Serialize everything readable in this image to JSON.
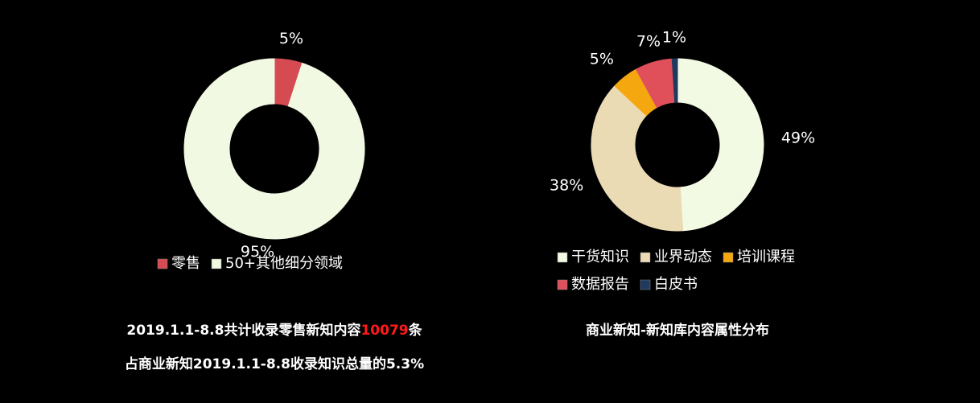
{
  "chart_data": [
    {
      "type": "donut",
      "categories": [
        "零售",
        "50+其他细分领域"
      ],
      "values": [
        5,
        95
      ],
      "value_labels": [
        "5%",
        "95%"
      ],
      "colors": [
        "#d64a52",
        "#f1f9e3"
      ],
      "legend": "bottom",
      "caption_lines": [
        [
          {
            "text": "2019.1.1-8.8共计收录零售新知内容",
            "color": "#ffffff"
          },
          {
            "text": "10079",
            "color": "#ff1a1a"
          },
          {
            "text": "条",
            "color": "#ffffff"
          }
        ],
        [
          {
            "text": "占商业新知2019.1.1-8.8收录知识总量的5.3%",
            "color": "#ffffff"
          }
        ]
      ]
    },
    {
      "type": "donut",
      "title": "商业新知-新知库内容属性分布",
      "categories": [
        "干货知识",
        "业界动态",
        "培训课程",
        "数据报告",
        "白皮书"
      ],
      "values": [
        49,
        38,
        5,
        7,
        1
      ],
      "value_labels": [
        "49%",
        "38%",
        "5%",
        "7%",
        "1%"
      ],
      "colors": [
        "#f2fae4",
        "#ebdbb5",
        "#f5a70f",
        "#e0505a",
        "#1e3a5f"
      ],
      "legend": "bottom"
    }
  ]
}
